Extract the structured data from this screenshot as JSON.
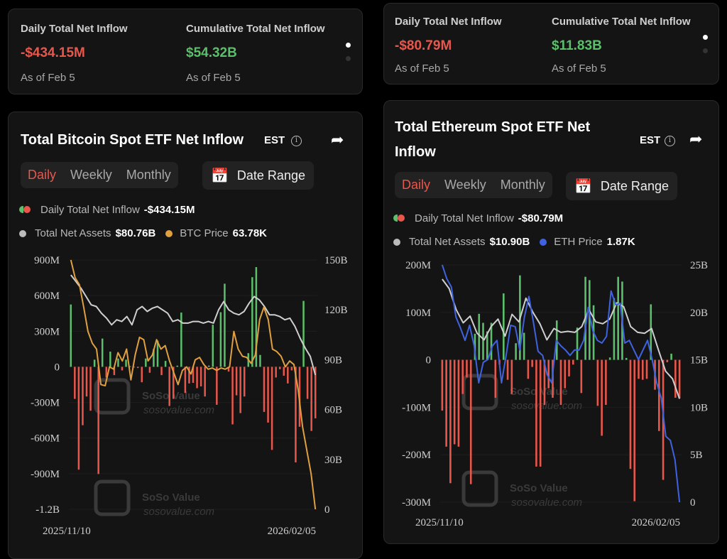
{
  "btc_summary": {
    "daily_label": "Daily Total Net Inflow",
    "daily_value": "-$434.15M",
    "cum_label": "Cumulative Total Net Inflow",
    "cum_value": "$54.32B",
    "daily_asof": "As of Feb 5",
    "cum_asof": "As of Feb 5"
  },
  "eth_summary": {
    "daily_label": "Daily Total Net Inflow",
    "daily_value": "-$80.79M",
    "cum_label": "Cumulative Total Net Inflow",
    "cum_value": "$11.83B",
    "daily_asof": "As of Feb 5",
    "cum_asof": "As of Feb 5"
  },
  "controls": {
    "tz": "EST",
    "info": "i",
    "tabs": [
      "Daily",
      "Weekly",
      "Monthly"
    ],
    "date_range": "Date Range"
  },
  "watermark": {
    "brand": "SoSo Value",
    "url": "sosovalue.com"
  },
  "colors": {
    "inflow": "#5cbf6b",
    "outflow": "#e8574c",
    "assets": "#cfcfcf",
    "btc": "#e0a040",
    "eth": "#3f63e0"
  },
  "btc_legend": {
    "inflow_label": "Daily Total Net Inflow",
    "inflow_value": "-$434.15M",
    "assets_label": "Total Net Assets",
    "assets_value": "$80.76B",
    "price_label": "BTC Price",
    "price_value": "63.78K"
  },
  "eth_legend": {
    "inflow_label": "Daily Total Net Inflow",
    "inflow_value": "-$80.79M",
    "assets_label": "Total Net Assets",
    "assets_value": "$10.90B",
    "price_label": "ETH Price",
    "price_value": "1.87K"
  },
  "chart_data": [
    {
      "type": "bar+line",
      "title": "Total Bitcoin Spot ETF Net Inflow",
      "x_start": "2025/11/10",
      "x_end": "2026/02/05",
      "left_ticks": [
        "900M",
        "600M",
        "300M",
        "0",
        "-300M",
        "-600M",
        "-900M",
        "-1.2B"
      ],
      "left_range_m": [
        -1200,
        900
      ],
      "right_ticks": [
        "150B",
        "120B",
        "90B",
        "60B",
        "30B",
        "0"
      ],
      "right_range_b": [
        0,
        150
      ],
      "price_range_k": [
        63.78,
        106
      ],
      "net_inflow_m": [
        525,
        -270,
        -866,
        -492,
        -250,
        -370,
        60,
        -903,
        238,
        -90,
        128,
        -70,
        70,
        -30,
        60,
        5,
        -5,
        -10,
        -130,
        70,
        -50,
        150,
        220,
        -70,
        50,
        -330,
        -270,
        10,
        457,
        -220,
        -140,
        -135,
        -180,
        -165,
        -250,
        10,
        355,
        -320,
        460,
        700,
        -40,
        -485,
        -240,
        -390,
        -250,
        115,
        755,
        840,
        100,
        -380,
        -470,
        -700,
        -90,
        -20,
        -75,
        -140,
        -30,
        -805,
        -505,
        555,
        -270,
        -540,
        -434
      ],
      "total_net_assets_b": [
        141,
        137,
        133,
        128,
        123,
        122,
        118,
        115,
        111,
        114,
        113,
        116,
        111,
        120,
        122,
        119,
        121,
        122,
        120,
        118,
        113,
        114,
        112,
        112,
        113,
        113,
        112,
        113,
        112,
        120,
        125,
        120,
        118,
        117,
        119,
        124,
        128,
        126,
        122,
        117,
        117,
        116,
        114,
        115,
        110,
        103,
        97,
        92,
        80.76
      ],
      "price_k": [
        106.0,
        103.0,
        101.8,
        98.0,
        93.9,
        91.9,
        90.9,
        84.9,
        84.7,
        87.9,
        87.5,
        90.3,
        88.9,
        90.9,
        85.7,
        89.9,
        92.9,
        92.5,
        88.9,
        89.9,
        92.5,
        90.9,
        91.5,
        88.9,
        86.9,
        84.9,
        87.3,
        87.9,
        86.7,
        89.1,
        89.5,
        88.3,
        87.5,
        87.7,
        87.3,
        87.7,
        87.5,
        87.9,
        93.9,
        90.9,
        89.7,
        89.5,
        88.5,
        89.9,
        95.9,
        98.0,
        95.9,
        90.9,
        90.5,
        89.7,
        87.9,
        88.9,
        88.3,
        83.9,
        77.8,
        73.8,
        69.8,
        63.78
      ]
    },
    {
      "type": "bar+line",
      "title": "Total Ethereum Spot ETF Net Inflow",
      "x_start": "2025/11/10",
      "x_end": "2026/02/05",
      "left_ticks": [
        "200M",
        "100M",
        "0",
        "-100M",
        "-200M",
        "-300M"
      ],
      "left_range_m": [
        -300,
        200
      ],
      "right_ticks": [
        "25B",
        "20B",
        "15B",
        "10B",
        "5B",
        "0"
      ],
      "right_range_b": [
        0,
        25
      ],
      "price_range_k": [
        1.87,
        3.6
      ],
      "net_inflow_m": [
        -107,
        -183,
        -260,
        -178,
        -183,
        -72,
        -37,
        -262,
        55,
        97,
        78,
        60,
        78,
        -80,
        -10,
        140,
        -42,
        -72,
        35,
        178,
        57,
        -40,
        -15,
        -225,
        -225,
        -95,
        -60,
        -80,
        83,
        -95,
        -60,
        -35,
        -10,
        68,
        -70,
        175,
        168,
        115,
        -97,
        -160,
        -95,
        5,
        130,
        175,
        165,
        4,
        -230,
        -298,
        -40,
        -42,
        -40,
        117,
        -63,
        -150,
        -253,
        -5,
        13,
        -80,
        -81
      ],
      "total_net_assets_b": [
        23.5,
        22.5,
        20.3,
        18.9,
        19.6,
        17.8,
        17.1,
        18.5,
        19.3,
        17.5,
        19.8,
        19.0,
        21.5,
        20.0,
        18.8,
        17.1,
        18.3,
        17.9,
        18.0,
        17.9,
        18.5,
        20.3,
        19.0,
        18.8,
        19.3,
        21.0,
        20.6,
        18.5,
        17.9,
        17.8,
        18.3,
        16.0,
        13.8,
        13.0,
        10.9
      ],
      "price_k": [
        3.6,
        3.5,
        3.44,
        3.22,
        3.14,
        3.05,
        3.16,
        3.01,
        2.74,
        2.89,
        2.91,
        3.01,
        3.05,
        2.74,
        2.94,
        3.16,
        3.15,
        2.98,
        3.22,
        3.37,
        3.18,
        2.97,
        2.94,
        2.8,
        2.74,
        3.05,
        3.01,
        2.98,
        2.94,
        2.98,
        2.98,
        3.05,
        3.29,
        3.12,
        3.05,
        3.03,
        3.08,
        3.41,
        3.31,
        3.32,
        3.03,
        3.05,
        2.98,
        2.91,
        2.98,
        3.05,
        2.91,
        2.74,
        2.63,
        2.35,
        2.32,
        2.18,
        1.87
      ]
    }
  ]
}
